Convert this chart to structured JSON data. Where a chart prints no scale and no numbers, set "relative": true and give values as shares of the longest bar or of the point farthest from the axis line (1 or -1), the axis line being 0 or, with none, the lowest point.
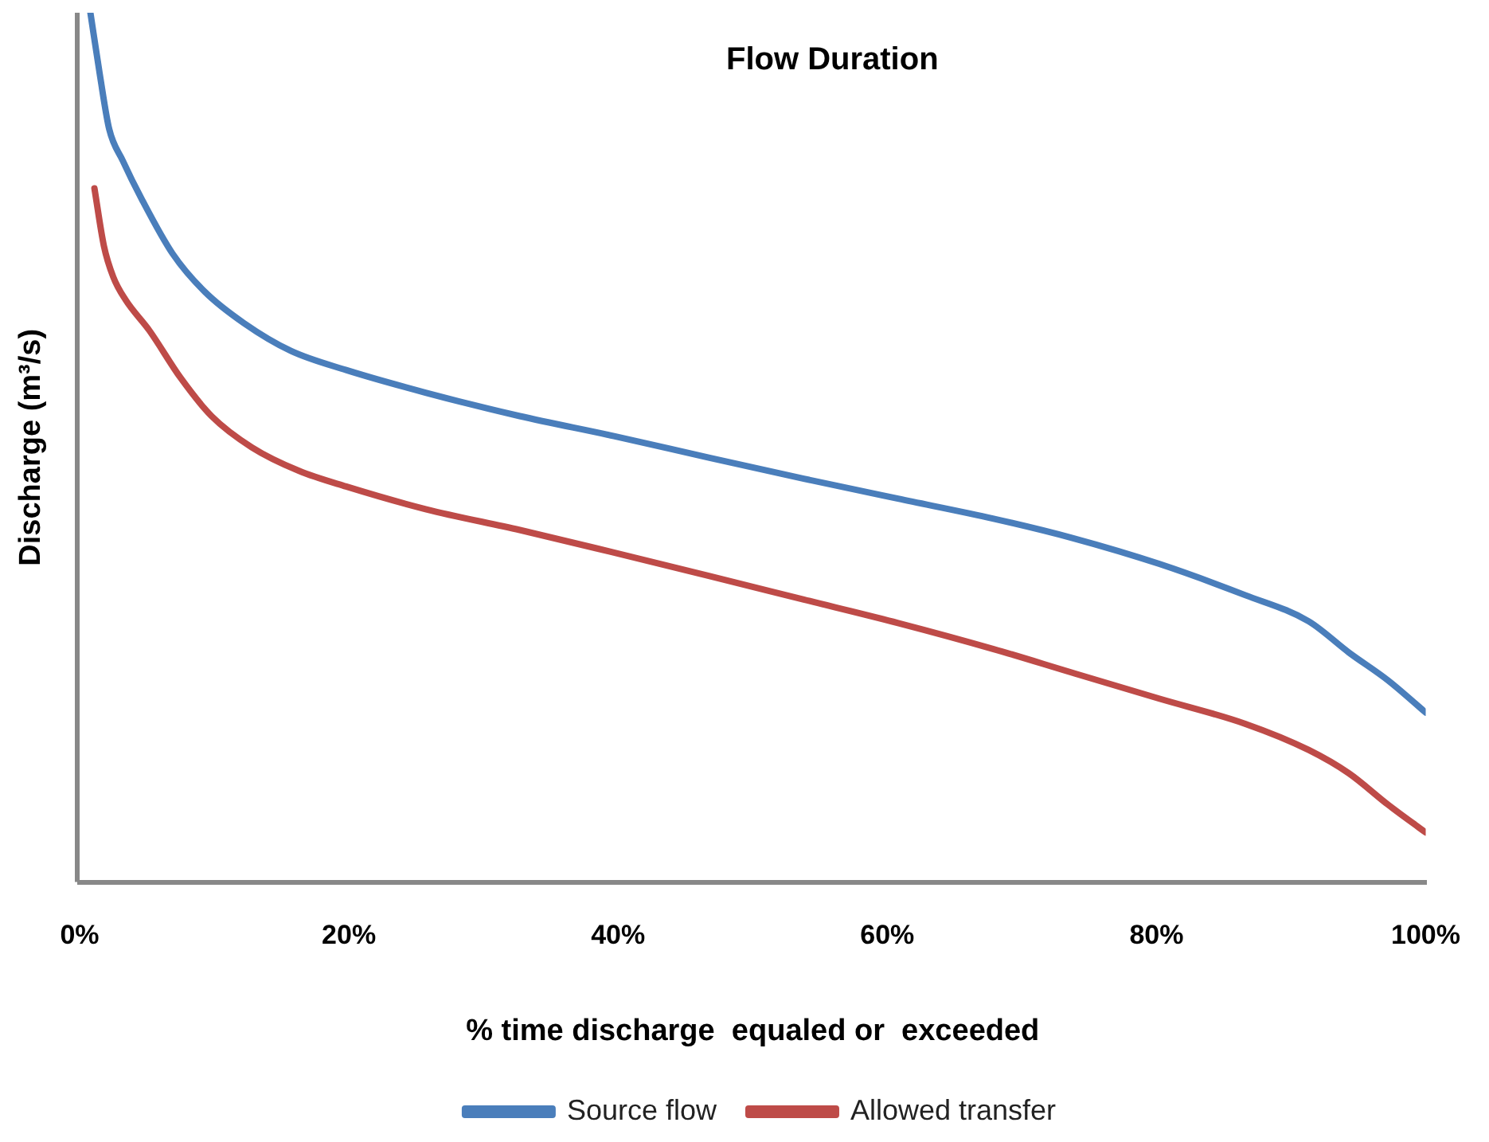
{
  "chart_data": {
    "type": "line",
    "title": "Flow Duration",
    "xlabel": "% time discharge  equaled or  exceeded",
    "ylabel": "Discharge (m³/s)",
    "relative": true,
    "legend": "bottom",
    "marker": "none",
    "line_style": "solid",
    "xlim": [
      0,
      100
    ],
    "xticks": [
      {
        "value": 0,
        "label": "0%"
      },
      {
        "value": 20,
        "label": "20%"
      },
      {
        "value": 40,
        "label": "40%"
      },
      {
        "value": 60,
        "label": "60%"
      },
      {
        "value": 80,
        "label": "80%"
      },
      {
        "value": 100,
        "label": "100%"
      }
    ],
    "series": [
      {
        "name": "Source flow",
        "color": "#4a7ebb",
        "x": [
          0.8,
          1.5,
          2.2,
          3.2,
          4.6,
          6.9,
          9.3,
          12.2,
          15.7,
          19.8,
          25.7,
          32.7,
          39.7,
          46.8,
          53.8,
          60.8,
          67.9,
          73.7,
          80.2,
          86.6,
          91.3,
          94.3,
          97.2,
          100
        ],
        "values": [
          1.0,
          0.929,
          0.866,
          0.83,
          0.786,
          0.723,
          0.679,
          0.643,
          0.611,
          0.589,
          0.563,
          0.536,
          0.513,
          0.488,
          0.464,
          0.441,
          0.418,
          0.396,
          0.366,
          0.33,
          0.3,
          0.264,
          0.232,
          0.195
        ]
      },
      {
        "name": "Allowed transfer",
        "color": "#be4b48",
        "x": [
          1.1,
          1.8,
          2.5,
          3.4,
          5.2,
          7.5,
          9.8,
          12.8,
          16.3,
          19.8,
          25.7,
          32.7,
          39.7,
          46.8,
          53.8,
          60.8,
          67.9,
          73.7,
          80.2,
          86.6,
          91.3,
          94.3,
          97.2,
          100
        ],
        "values": [
          0.798,
          0.732,
          0.696,
          0.67,
          0.634,
          0.58,
          0.536,
          0.5,
          0.473,
          0.455,
          0.429,
          0.405,
          0.379,
          0.352,
          0.325,
          0.298,
          0.268,
          0.241,
          0.211,
          0.182,
          0.152,
          0.125,
          0.089,
          0.057
        ]
      }
    ]
  }
}
